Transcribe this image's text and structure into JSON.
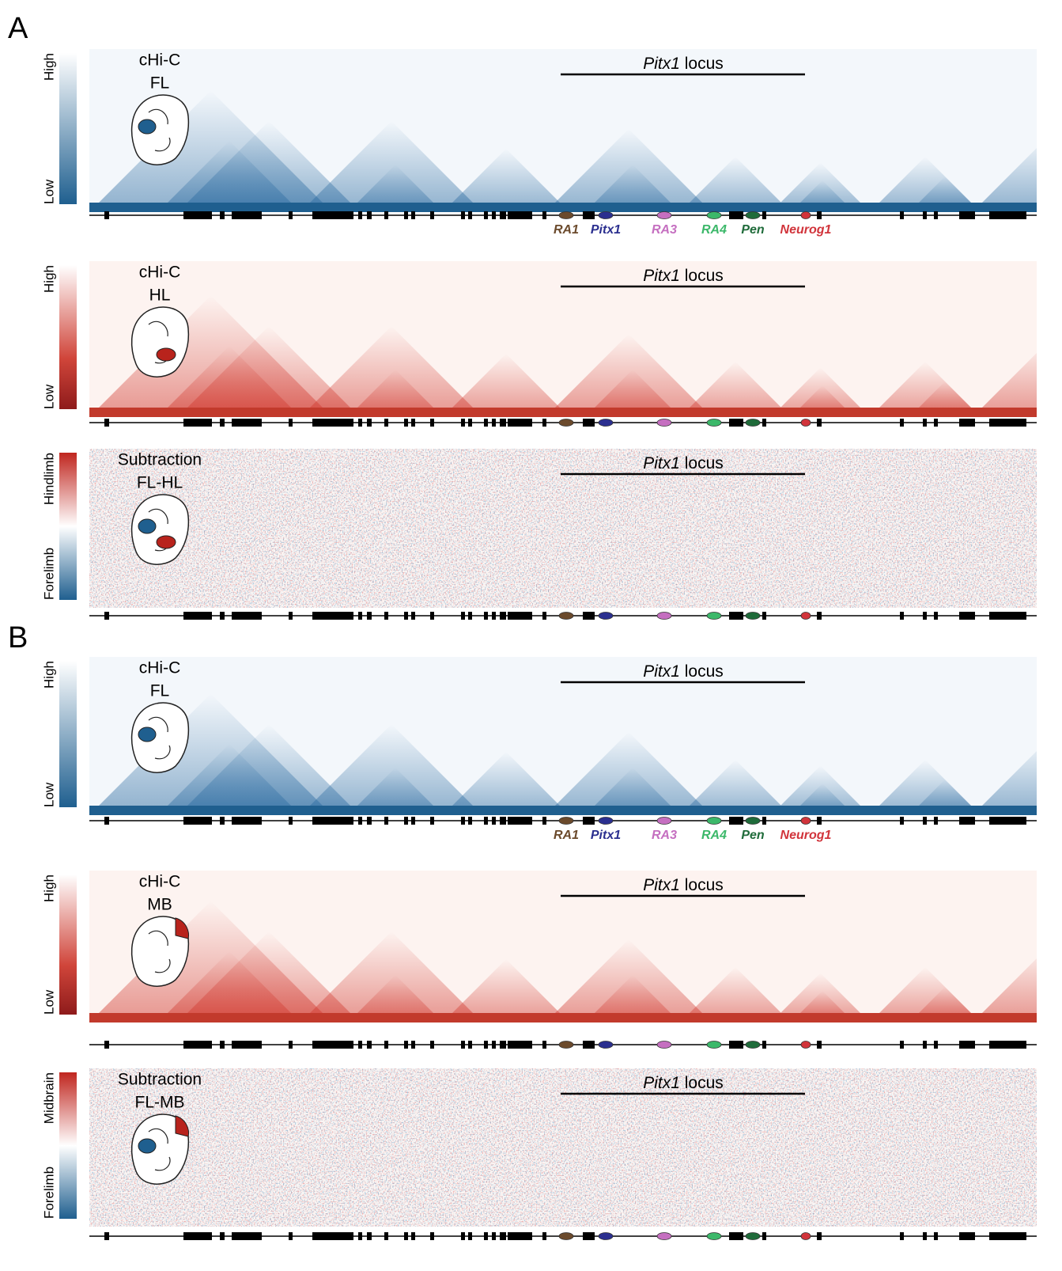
{
  "panel_labels": [
    "A",
    "B"
  ],
  "locus": {
    "gene": "Pitx1",
    "word": "locus"
  },
  "genes": [
    {
      "name": "RA1",
      "color": "#6b4a2c"
    },
    {
      "name": "Pitx1",
      "color": "#2b2f8f"
    },
    {
      "name": "RA3",
      "color": "#c56fc0"
    },
    {
      "name": "RA4",
      "color": "#3cb86a"
    },
    {
      "name": "Pen",
      "color": "#1f6b3a"
    },
    {
      "name": "Neurog1",
      "color": "#d1343b"
    }
  ],
  "maps": [
    {
      "title": [
        "cHi-C",
        "FL"
      ],
      "scale_top": "High",
      "scale_bottom": "Low",
      "palette": "blue",
      "gene_labels": true
    },
    {
      "title": [
        "cHi-C",
        "HL"
      ],
      "scale_top": "High",
      "scale_bottom": "Low",
      "palette": "red",
      "gene_labels": false
    },
    {
      "title": [
        "Subtraction",
        "FL-HL"
      ],
      "scale_top": "Hindlimb",
      "scale_bottom": "Forelimb",
      "palette": "diverging",
      "gene_labels": false
    },
    {
      "title": [
        "cHi-C",
        "FL"
      ],
      "scale_top": "High",
      "scale_bottom": "Low",
      "palette": "blue",
      "gene_labels": true
    },
    {
      "title": [
        "cHi-C",
        "MB"
      ],
      "scale_top": "High",
      "scale_bottom": "Low",
      "palette": "red",
      "gene_labels": false
    },
    {
      "title": [
        "Subtraction",
        "FL-MB"
      ],
      "scale_top": "Midbrain",
      "scale_bottom": "Forelimb",
      "palette": "diverging",
      "gene_labels": false
    }
  ]
}
